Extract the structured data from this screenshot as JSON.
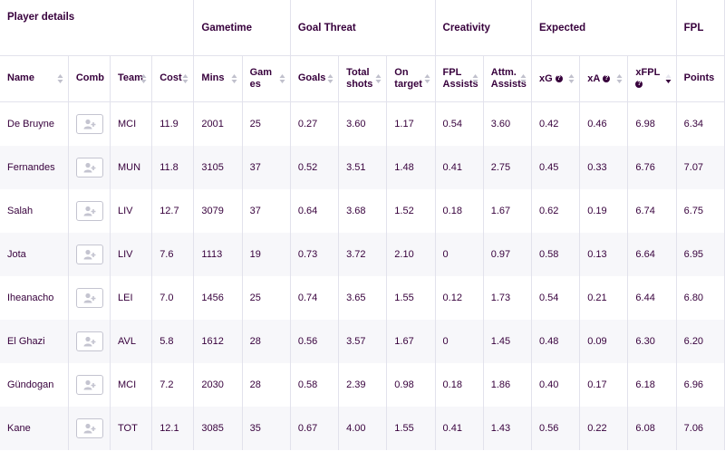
{
  "groups": {
    "player_details": "Player details",
    "gametime": "Gametime",
    "goal_threat": "Goal Threat",
    "creativity": "Creativity",
    "expected": "Expected",
    "fpl": "FPL"
  },
  "columns": {
    "name": "Name",
    "comb": "Comb",
    "team": "Team",
    "cost": "Cost",
    "mins": "Mins",
    "games": "Games",
    "goals": "Goals",
    "total_shots": "Total shots",
    "on_target": "On target",
    "fpl_assists": "FPL Assists",
    "attm_assists": "Attm. Assists",
    "xg": "xG",
    "xa": "xA",
    "xfpl": "xFPL",
    "points": "Points",
    "help_glyph": "?"
  },
  "rows": [
    {
      "name": "De Bruyne",
      "team": "MCI",
      "cost": "11.9",
      "mins": "2001",
      "games": "25",
      "goals": "0.27",
      "total_shots": "3.60",
      "on_target": "1.17",
      "fpl_assists": "0.54",
      "attm_assists": "3.60",
      "xg": "0.42",
      "xa": "0.46",
      "xfpl": "6.98",
      "points": "6.34"
    },
    {
      "name": "Fernandes",
      "team": "MUN",
      "cost": "11.8",
      "mins": "3105",
      "games": "37",
      "goals": "0.52",
      "total_shots": "3.51",
      "on_target": "1.48",
      "fpl_assists": "0.41",
      "attm_assists": "2.75",
      "xg": "0.45",
      "xa": "0.33",
      "xfpl": "6.76",
      "points": "7.07"
    },
    {
      "name": "Salah",
      "team": "LIV",
      "cost": "12.7",
      "mins": "3079",
      "games": "37",
      "goals": "0.64",
      "total_shots": "3.68",
      "on_target": "1.52",
      "fpl_assists": "0.18",
      "attm_assists": "1.67",
      "xg": "0.62",
      "xa": "0.19",
      "xfpl": "6.74",
      "points": "6.75"
    },
    {
      "name": "Jota",
      "team": "LIV",
      "cost": "7.6",
      "mins": "1113",
      "games": "19",
      "goals": "0.73",
      "total_shots": "3.72",
      "on_target": "2.10",
      "fpl_assists": "0",
      "attm_assists": "0.97",
      "xg": "0.58",
      "xa": "0.13",
      "xfpl": "6.64",
      "points": "6.95"
    },
    {
      "name": "Iheanacho",
      "team": "LEI",
      "cost": "7.0",
      "mins": "1456",
      "games": "25",
      "goals": "0.74",
      "total_shots": "3.65",
      "on_target": "1.55",
      "fpl_assists": "0.12",
      "attm_assists": "1.73",
      "xg": "0.54",
      "xa": "0.21",
      "xfpl": "6.44",
      "points": "6.80"
    },
    {
      "name": "El Ghazi",
      "team": "AVL",
      "cost": "5.8",
      "mins": "1612",
      "games": "28",
      "goals": "0.56",
      "total_shots": "3.57",
      "on_target": "1.67",
      "fpl_assists": "0",
      "attm_assists": "1.45",
      "xg": "0.48",
      "xa": "0.09",
      "xfpl": "6.30",
      "points": "6.20"
    },
    {
      "name": "Gündogan",
      "team": "MCI",
      "cost": "7.2",
      "mins": "2030",
      "games": "28",
      "goals": "0.58",
      "total_shots": "2.39",
      "on_target": "0.98",
      "fpl_assists": "0.18",
      "attm_assists": "1.86",
      "xg": "0.40",
      "xa": "0.17",
      "xfpl": "6.18",
      "points": "6.96"
    },
    {
      "name": "Kane",
      "team": "TOT",
      "cost": "12.1",
      "mins": "3085",
      "games": "35",
      "goals": "0.67",
      "total_shots": "4.00",
      "on_target": "1.55",
      "fpl_assists": "0.41",
      "attm_assists": "1.43",
      "xg": "0.56",
      "xa": "0.22",
      "xfpl": "6.08",
      "points": "7.06"
    }
  ]
}
